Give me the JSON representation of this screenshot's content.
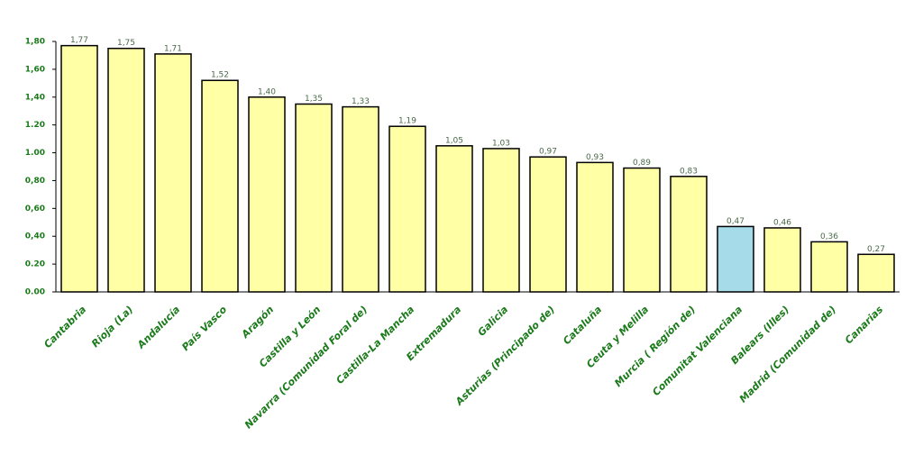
{
  "chart_data": {
    "type": "bar",
    "categories": [
      "Cantabria",
      "Rioja (La)",
      "Andalucía",
      "País Vasco",
      "Aragón",
      "Castilla y León",
      "Navarra (Comunidad Foral de)",
      "Castilla-La Mancha",
      "Extremadura",
      "Galicia",
      "Asturias (Principado de)",
      "Cataluña",
      "Ceuta y Melilla",
      "Murcia ( Región de)",
      "Comunitat Valenciana",
      "Balears (Illes)",
      "Madrid (Comunidad de)",
      "Canarias"
    ],
    "values": [
      1.77,
      1.75,
      1.71,
      1.52,
      1.4,
      1.35,
      1.33,
      1.19,
      1.05,
      1.03,
      0.97,
      0.93,
      0.89,
      0.83,
      0.47,
      0.46,
      0.36,
      0.27
    ],
    "value_labels": [
      "1,77",
      "1,75",
      "1,71",
      "1,52",
      "1,40",
      "1,35",
      "1,33",
      "1,19",
      "1,05",
      "1,03",
      "0,97",
      "0,93",
      "0,89",
      "0,83",
      "0,47",
      "0,46",
      "0,36",
      "0,27"
    ],
    "colors": [
      "#ffffa6",
      "#ffffa6",
      "#ffffa6",
      "#ffffa6",
      "#ffffa6",
      "#ffffa6",
      "#ffffa6",
      "#ffffa6",
      "#ffffa6",
      "#ffffa6",
      "#ffffa6",
      "#ffffa6",
      "#ffffa6",
      "#ffffa6",
      "#a6dcea",
      "#ffffa6",
      "#ffffa6",
      "#ffffa6"
    ],
    "ylim": [
      0,
      1.8
    ],
    "yticks": [
      {
        "value": 0,
        "label": "0.00"
      },
      {
        "value": 0.2,
        "label": "0.20"
      },
      {
        "value": 0.4,
        "label": "0,40"
      },
      {
        "value": 0.6,
        "label": "0,60"
      },
      {
        "value": 0.8,
        "label": "0,80"
      },
      {
        "value": 1.0,
        "label": "1.00"
      },
      {
        "value": 1.2,
        "label": "1.20"
      },
      {
        "value": 1.4,
        "label": "1,40"
      },
      {
        "value": 1.6,
        "label": "1,60"
      },
      {
        "value": 1.8,
        "label": "1,80"
      }
    ],
    "grid": false
  }
}
